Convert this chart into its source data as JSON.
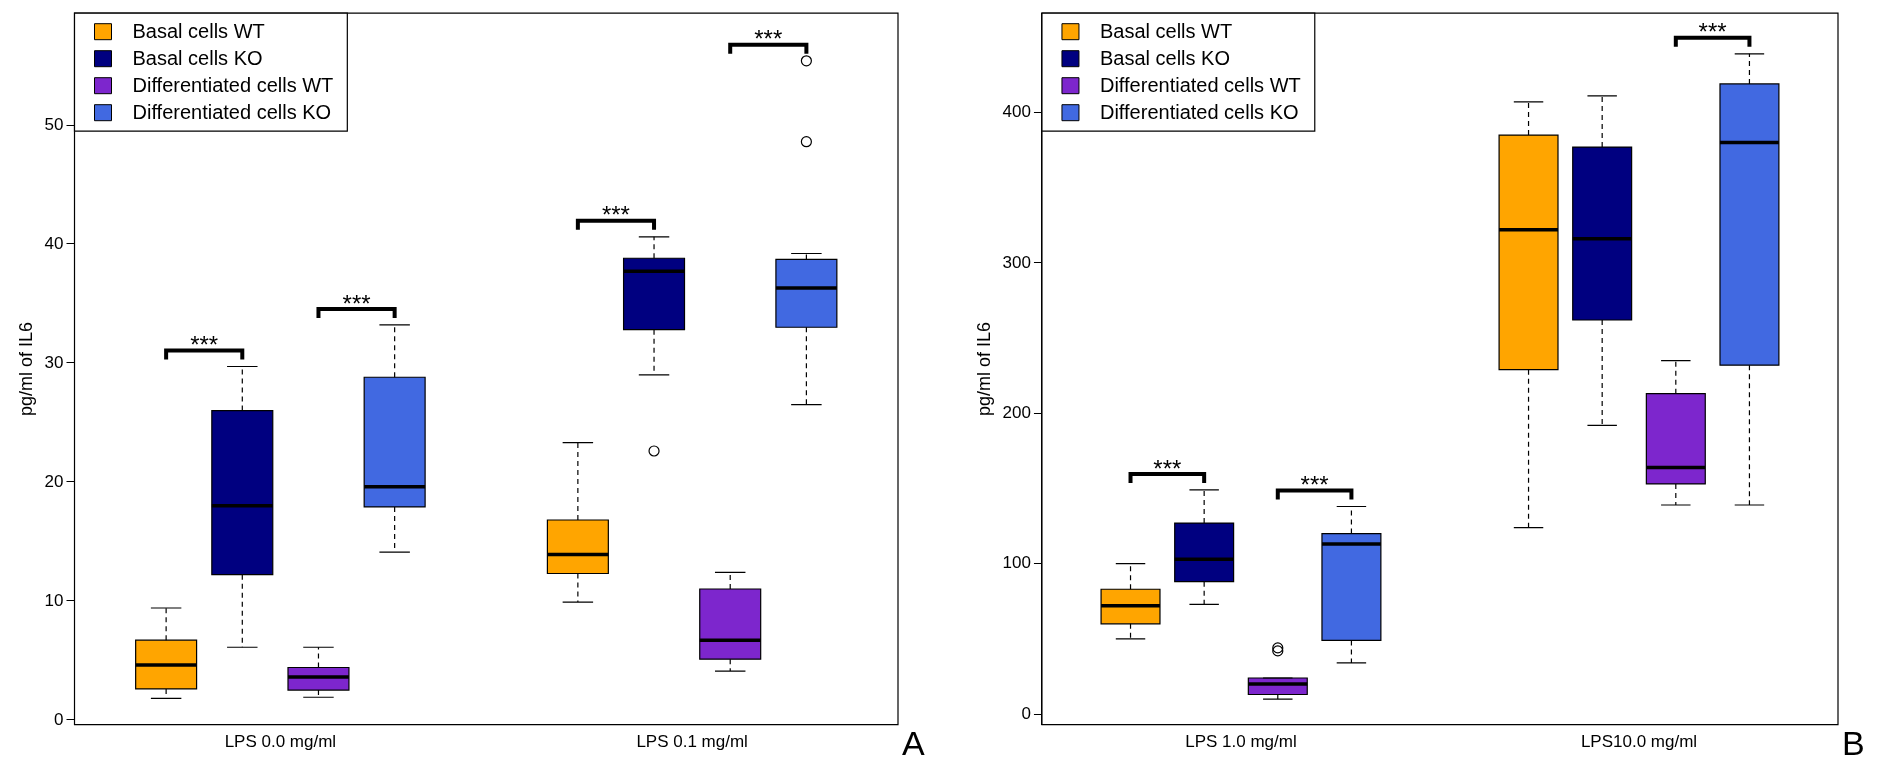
{
  "chart_data": [
    {
      "type": "box",
      "categories": [
        "LPS 0.0 mg/ml",
        "LPS 0.1 mg/ml"
      ],
      "ylabel": "pg/ml of IL6",
      "ylim": [
        -0.4,
        59.4
      ],
      "yticks": [
        0,
        10,
        20,
        30,
        40,
        50
      ],
      "grid": false,
      "legend": "top left",
      "series": [
        {
          "name": "Basal cells WT",
          "color": "#ffa500",
          "boxes": [
            {
              "low": 1.8,
              "q1": 2.6,
              "median": 4.6,
              "q3": 6.7,
              "high": 9.4
            },
            {
              "low": 9.9,
              "q1": 12.3,
              "median": 13.9,
              "q3": 16.8,
              "high": 23.3
            }
          ]
        },
        {
          "name": "Basal cells KO",
          "color": "#000080",
          "boxes": [
            {
              "low": 6.1,
              "q1": 12.2,
              "median": 18.0,
              "q3": 26.0,
              "high": 29.7
            },
            {
              "low": 29.0,
              "q1": 32.8,
              "median": 37.7,
              "q3": 38.8,
              "high": 40.6,
              "outliers": [
                22.6
              ]
            }
          ]
        },
        {
          "name": "Differentiated cells WT",
          "color": "#7d26cd",
          "boxes": [
            {
              "low": 1.9,
              "q1": 2.5,
              "median": 3.6,
              "q3": 4.4,
              "high": 6.1
            },
            {
              "low": 4.1,
              "q1": 5.1,
              "median": 6.7,
              "q3": 11.0,
              "high": 12.4
            }
          ]
        },
        {
          "name": "Differentiated cells KO",
          "color": "#4169e1",
          "boxes": [
            {
              "low": 14.1,
              "q1": 17.9,
              "median": 19.6,
              "q3": 28.8,
              "high": 33.2
            },
            {
              "low": 26.5,
              "q1": 33.0,
              "median": 36.3,
              "q3": 38.7,
              "high": 39.2,
              "outliers": [
                48.6,
                55.4
              ]
            }
          ]
        }
      ],
      "annotations": [
        "***",
        "***",
        "***",
        "***",
        "A"
      ]
    },
    {
      "type": "box",
      "categories": [
        "LPS 1.0 mg/ml",
        "LPS10.0 mg/ml"
      ],
      "ylabel": "pg/ml of IL6",
      "ylim": [
        -7,
        466
      ],
      "yticks": [
        0,
        100,
        200,
        300,
        400
      ],
      "grid": false,
      "legend": "top left",
      "series": [
        {
          "name": "Basal cells WT",
          "color": "#ffa500",
          "boxes": [
            {
              "low": 50,
              "q1": 60,
              "median": 72,
              "q3": 83,
              "high": 100
            },
            {
              "low": 124,
              "q1": 229,
              "median": 322,
              "q3": 385,
              "high": 407
            }
          ]
        },
        {
          "name": "Basal cells KO",
          "color": "#000080",
          "boxes": [
            {
              "low": 73,
              "q1": 88,
              "median": 103,
              "q3": 127,
              "high": 149
            },
            {
              "low": 192,
              "q1": 262,
              "median": 316,
              "q3": 377,
              "high": 411
            }
          ]
        },
        {
          "name": "Differentiated cells WT",
          "color": "#7d26cd",
          "boxes": [
            {
              "low": 10,
              "q1": 13,
              "median": 20,
              "q3": 24,
              "high": 24,
              "outliers": [
                42,
                44
              ]
            },
            {
              "low": 139,
              "q1": 153,
              "median": 164,
              "q3": 213,
              "high": 235
            }
          ]
        },
        {
          "name": "Differentiated cells KO",
          "color": "#4169e1",
          "boxes": [
            {
              "low": 34,
              "q1": 49,
              "median": 113,
              "q3": 120,
              "high": 138
            },
            {
              "low": 139,
              "q1": 232,
              "median": 380,
              "q3": 419,
              "high": 439
            }
          ]
        }
      ],
      "annotations": [
        "***",
        "***",
        "***",
        "B"
      ]
    }
  ]
}
